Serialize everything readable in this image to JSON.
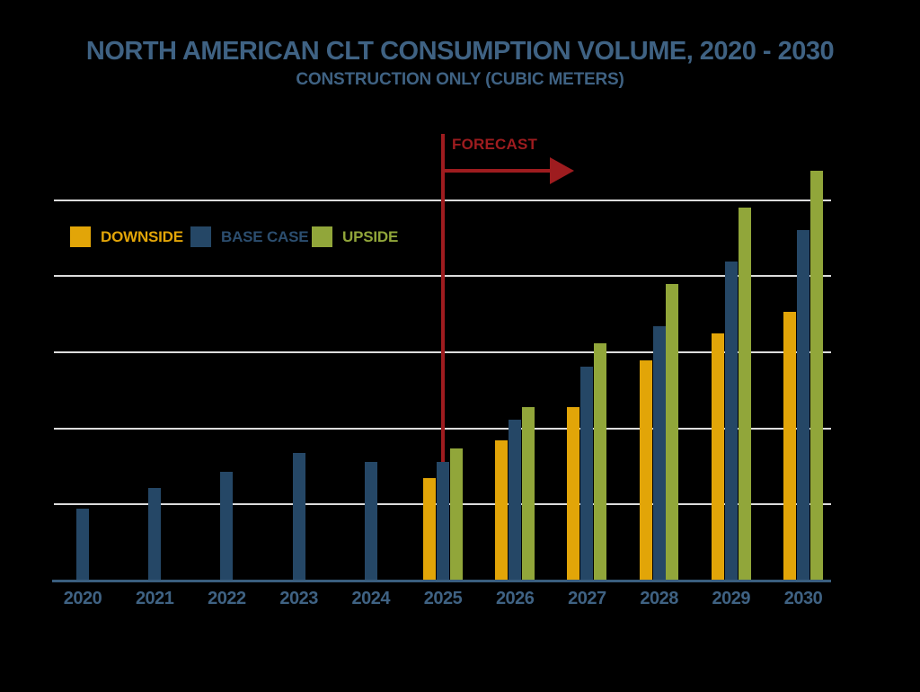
{
  "title": "NORTH AMERICAN CLT CONSUMPTION VOLUME, 2020 - 2030",
  "subtitle": "CONSTRUCTION ONLY (CUBIC METERS)",
  "forecast_label": "FORECAST",
  "colors": {
    "background": "#000000",
    "title_text": "#3F6283",
    "tick_label_text": "#3F6283",
    "downside": "#E2A508",
    "base_case": "#254766",
    "base_case_text": "#2C4E6F",
    "upside": "#91A63A",
    "forecast_red": "#9E1C1F",
    "gridline": "#DCDCDC",
    "axis_line": "#3A5E7E"
  },
  "legend": {
    "items": [
      {
        "label": "DOWNSIDE",
        "color_key": "downside",
        "text_color_key": "downside"
      },
      {
        "label": "BASE CASE",
        "color_key": "base_case",
        "text_color_key": "base_case_text"
      },
      {
        "label": "UPSIDE",
        "color_key": "upside",
        "text_color_key": "upside"
      }
    ]
  },
  "chart_data": {
    "type": "bar",
    "title": "NORTH AMERICAN CLT CONSUMPTION VOLUME, 2020 - 2030",
    "subtitle": "CONSTRUCTION ONLY (CUBIC METERS)",
    "categories": [
      "2020",
      "2021",
      "2022",
      "2023",
      "2024",
      "2025",
      "2026",
      "2027",
      "2028",
      "2029",
      "2030"
    ],
    "series": [
      {
        "name": "Downside",
        "color_key": "downside",
        "values": [
          null,
          null,
          null,
          null,
          null,
          1.35,
          1.84,
          2.28,
          2.89,
          3.25,
          3.53
        ]
      },
      {
        "name": "Base Case",
        "color_key": "base_case",
        "values": [
          0.94,
          1.22,
          1.43,
          1.68,
          1.56,
          1.56,
          2.11,
          2.81,
          3.34,
          4.19,
          4.6
        ]
      },
      {
        "name": "Upside",
        "color_key": "upside",
        "values": [
          null,
          null,
          null,
          null,
          null,
          1.74,
          2.28,
          3.12,
          3.9,
          4.9,
          5.38
        ]
      }
    ],
    "xlabel": "",
    "ylabel": "",
    "y_axis": {
      "numeric_labels_visible": false,
      "gridline_values": [
        1,
        2,
        3,
        4,
        5
      ],
      "ylim": [
        0,
        6
      ],
      "note": "No numeric y-axis labels are shown in the chart; values are in relative gridline units read from the plot."
    },
    "grid": "horizontal only",
    "legend_position": "inside top-left",
    "annotations": [
      {
        "type": "vertical-line-with-arrow",
        "at_category": "2025",
        "label": "FORECAST",
        "meaning": "forecast period starts at 2025, arrow points right"
      }
    ]
  }
}
